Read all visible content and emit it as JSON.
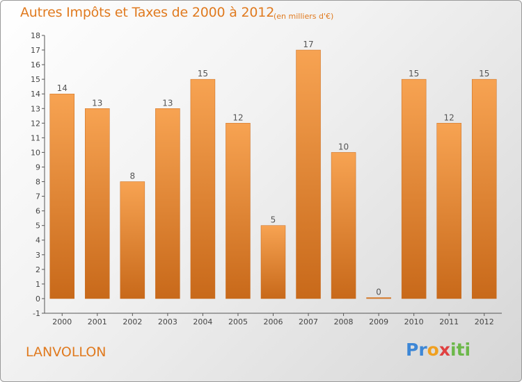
{
  "header": {
    "title": "Autres Impôts et Taxes de 2000 à 2012",
    "unit": "(en milliers d'€)"
  },
  "footer": {
    "town": "LANVOLLON",
    "logo": "Proxiti"
  },
  "colors": {
    "bar_top": "#f7a352",
    "bar_bottom": "#c8691a",
    "accent": "#e07a1f"
  },
  "chart_data": {
    "type": "bar",
    "title": "Autres Impôts et Taxes de 2000 à 2012",
    "ylabel": "(en milliers d'€)",
    "xlabel": "",
    "categories": [
      "2000",
      "2001",
      "2002",
      "2003",
      "2004",
      "2005",
      "2006",
      "2007",
      "2008",
      "2009",
      "2010",
      "2011",
      "2012"
    ],
    "values": [
      14,
      13,
      8,
      13,
      15,
      12,
      5,
      17,
      10,
      0,
      15,
      12,
      15
    ],
    "ylim": [
      -1,
      18
    ],
    "yticks": [
      -1,
      0,
      1,
      2,
      3,
      4,
      5,
      6,
      7,
      8,
      9,
      10,
      11,
      12,
      13,
      14,
      15,
      16,
      17,
      18
    ],
    "grid": false,
    "legend": "none"
  }
}
